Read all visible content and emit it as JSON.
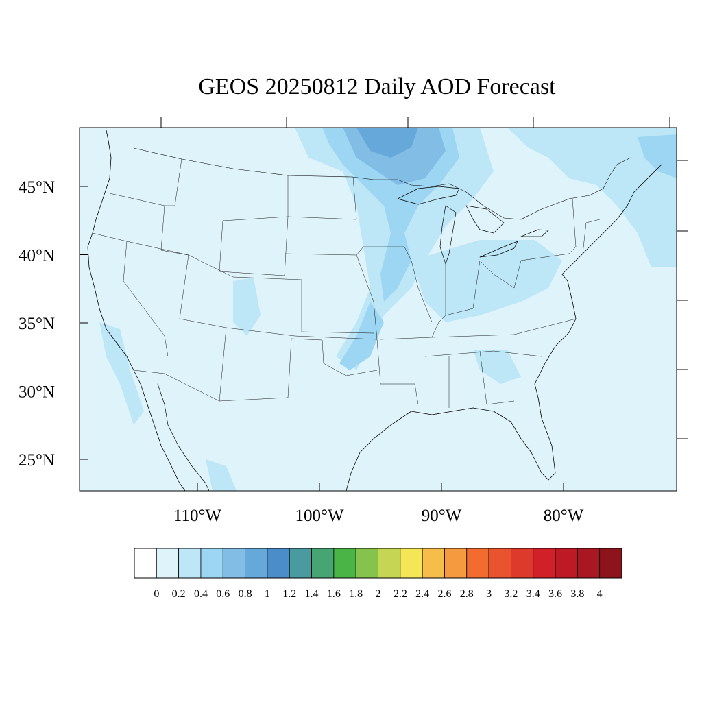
{
  "title": "GEOS 20250812 Daily AOD Forecast",
  "map": {
    "lat_labels": [
      "45°N",
      "40°N",
      "35°N",
      "30°N",
      "25°N"
    ],
    "lat_values": [
      45,
      40,
      35,
      30,
      25
    ],
    "lon_labels": [
      "110°W",
      "100°W",
      "90°W",
      "80°W"
    ],
    "lon_values": [
      -110,
      -100,
      -90,
      -80
    ],
    "background_color": "#dff3fb",
    "line_color": "#000000"
  },
  "colorbar": {
    "labels": [
      "0",
      "0.2",
      "0.4",
      "0.6",
      "0.8",
      "1",
      "1.2",
      "1.4",
      "1.6",
      "1.8",
      "2",
      "2.2",
      "2.4",
      "2.6",
      "2.8",
      "3",
      "3.2",
      "3.4",
      "3.6",
      "3.8",
      "4"
    ],
    "colors": [
      "#ffffff",
      "#dff3fb",
      "#bde6f7",
      "#9dd6f2",
      "#82bde6",
      "#67a8da",
      "#4b8dc9",
      "#4a9b9f",
      "#47a574",
      "#4bb447",
      "#86c34c",
      "#c5d655",
      "#f5e658",
      "#f7bd4a",
      "#f59a3f",
      "#f26b2f",
      "#e9532e",
      "#de3a2b",
      "#d22029",
      "#bd1a26",
      "#a81822",
      "#8e141c"
    ]
  },
  "regions": {
    "light": "#bde6f7",
    "medium": "#9dd6f2",
    "strong": "#82bde6",
    "darkest": "#67a8da"
  }
}
